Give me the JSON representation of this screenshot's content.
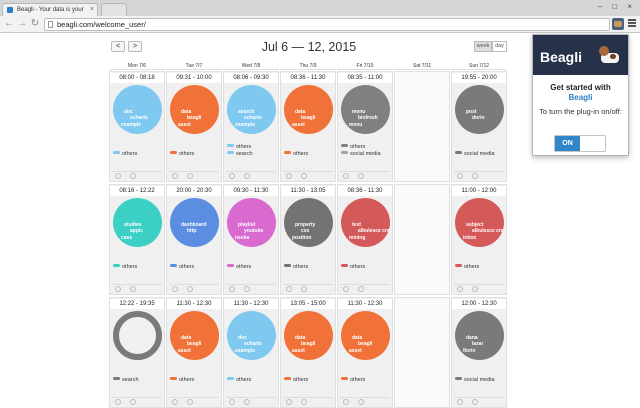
{
  "browser": {
    "tab_title": "Beagli - Your data is your",
    "url": "beagli.com/welcome_user/",
    "window_controls": "– □ ×"
  },
  "calendar": {
    "prev_label": "<",
    "next_label": ">",
    "date_range": "Jul 6 — 12, 2015",
    "week_label": "week",
    "day_label": "day",
    "days": [
      "Mon 7/6",
      "Tue 7/7",
      "Wed 7/8",
      "Thu 7/9",
      "Fri 7/10",
      "Sat 7/11",
      "Sun 7/12"
    ],
    "cells": [
      {
        "col": 0,
        "row": 0,
        "time": "08:00 - 08:18",
        "color": "#7fc8f0",
        "style": "solid",
        "labels": [
          "doc",
          "echarts",
          "example"
        ],
        "legend": [
          {
            "name": "others",
            "color": "#7fc8f0"
          }
        ]
      },
      {
        "col": 1,
        "row": 0,
        "time": "09:31 - 10:00",
        "color": "#f07238",
        "style": "solid",
        "labels": [
          "data",
          "beagli",
          "asset"
        ],
        "legend": [
          {
            "name": "others",
            "color": "#f07238"
          }
        ]
      },
      {
        "col": 2,
        "row": 0,
        "time": "08:06 - 09:30",
        "color": "#7fc8f0",
        "style": "solid",
        "labels": [
          "search",
          "echarts",
          "example"
        ],
        "legend": [
          {
            "name": "others",
            "color": "#7fc8f0"
          },
          {
            "name": "search",
            "color": "#7fc8f0"
          }
        ]
      },
      {
        "col": 3,
        "row": 0,
        "time": "08:36 - 11:30",
        "color": "#f07238",
        "style": "solid",
        "labels": [
          "data",
          "beagli",
          "asset"
        ],
        "legend": [
          {
            "name": "others",
            "color": "#f07238"
          }
        ]
      },
      {
        "col": 4,
        "row": 0,
        "time": "08:35 - 11:00",
        "color": "#808080",
        "style": "solid",
        "labels": [
          "menu",
          "biofresh",
          "menu"
        ],
        "legend": [
          {
            "name": "others",
            "color": "#808080"
          },
          {
            "name": "social media",
            "color": "#a0a0a0"
          }
        ]
      },
      {
        "col": 5,
        "row": 0,
        "empty": true
      },
      {
        "col": 6,
        "row": 0,
        "time": "19:55 - 20:00",
        "color": "#7a7a7a",
        "style": "solid",
        "labels": [
          "post",
          "dorin",
          ""
        ],
        "legend": [
          {
            "name": "social media",
            "color": "#7a7a7a"
          }
        ]
      },
      {
        "col": 0,
        "row": 1,
        "time": "08:16 - 12:22",
        "color": "#3cd0c5",
        "style": "solid",
        "labels": [
          "studies",
          "appic",
          "case"
        ],
        "legend": [
          {
            "name": "others",
            "color": "#3cd0c5"
          }
        ]
      },
      {
        "col": 1,
        "row": 1,
        "time": "20:00 - 20:30",
        "color": "#5b8de0",
        "style": "solid",
        "labels": [
          "dashboard",
          "http",
          ""
        ],
        "legend": [
          {
            "name": "others",
            "color": "#5b8de0"
          }
        ]
      },
      {
        "col": 2,
        "row": 1,
        "time": "09:30 - 11:30",
        "color": "#d86ad0",
        "style": "solid",
        "labels": [
          "playlist",
          "youtube",
          "neeka"
        ],
        "legend": [
          {
            "name": "others",
            "color": "#d86ad0"
          }
        ]
      },
      {
        "col": 3,
        "row": 1,
        "time": "11:30 - 13:05",
        "color": "#737373",
        "style": "solid",
        "labels": [
          "property",
          "css",
          "position"
        ],
        "legend": [
          {
            "name": "others",
            "color": "#737373"
          }
        ]
      },
      {
        "col": 4,
        "row": 1,
        "time": "08:36 - 11:30",
        "color": "#d45a5a",
        "style": "solid",
        "labels": [
          "text",
          "albulesce cre",
          "mining"
        ],
        "legend": [
          {
            "name": "others",
            "color": "#d45a5a"
          }
        ]
      },
      {
        "col": 5,
        "row": 1,
        "empty": true
      },
      {
        "col": 6,
        "row": 1,
        "time": "11:00 - 12:00",
        "color": "#d45a5a",
        "style": "solid",
        "labels": [
          "subject",
          "albulesce cre",
          "inbox"
        ],
        "legend": [
          {
            "name": "others",
            "color": "#d45a5a"
          }
        ]
      },
      {
        "col": 0,
        "row": 2,
        "time": "12:22 - 19:35",
        "color": "#7a7a7a",
        "style": "thin",
        "labels": [
          "",
          "",
          ""
        ],
        "legend": [
          {
            "name": "search",
            "color": "#7a7a7a"
          }
        ]
      },
      {
        "col": 1,
        "row": 2,
        "time": "11:30 - 12:30",
        "color": "#f07238",
        "style": "solid",
        "labels": [
          "data",
          "beagli",
          "asset"
        ],
        "legend": [
          {
            "name": "others",
            "color": "#f07238"
          }
        ]
      },
      {
        "col": 2,
        "row": 2,
        "time": "11:30 - 12:30",
        "color": "#7fc8f0",
        "style": "solid",
        "labels": [
          "doc",
          "echarts",
          "example"
        ],
        "legend": [
          {
            "name": "others",
            "color": "#7fc8f0"
          }
        ]
      },
      {
        "col": 3,
        "row": 2,
        "time": "13:05 - 15:00",
        "color": "#f07238",
        "style": "solid",
        "labels": [
          "data",
          "beagli",
          "asset"
        ],
        "legend": [
          {
            "name": "others",
            "color": "#f07238"
          }
        ]
      },
      {
        "col": 4,
        "row": 2,
        "time": "11:30 - 12:30",
        "color": "#f07238",
        "style": "solid",
        "labels": [
          "data",
          "beagli",
          "asset"
        ],
        "legend": [
          {
            "name": "others",
            "color": "#f07238"
          }
        ]
      },
      {
        "col": 5,
        "row": 2,
        "empty": true
      },
      {
        "col": 6,
        "row": 2,
        "time": "12:00 - 12:30",
        "color": "#7a7a7a",
        "style": "solid",
        "labels": [
          "dana",
          "lazar",
          "florin"
        ],
        "legend": [
          {
            "name": "social media",
            "color": "#7a7a7a"
          }
        ]
      }
    ]
  },
  "popup": {
    "logo": "Beagli",
    "title_line1": "Get started with",
    "title_brand": "Beagli",
    "subtitle": "To turn the plug-in on/off:",
    "toggle_label": "ON",
    "toggle_color": "#2f86c9",
    "header_color": "#26324a"
  }
}
